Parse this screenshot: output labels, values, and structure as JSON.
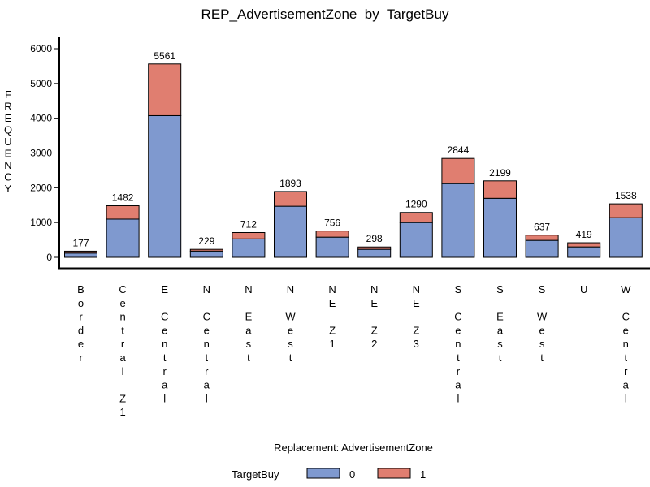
{
  "chart_data": {
    "type": "bar",
    "stacked": true,
    "title": "REP_AdvertisementZone  by  TargetBuy",
    "xlabel": "Replacement: AdvertisementZone",
    "ylabel": "FREQUENCY",
    "ylim": [
      0,
      6300
    ],
    "yticks": [
      0,
      1000,
      2000,
      3000,
      4000,
      5000,
      6000
    ],
    "categories": [
      "Border",
      "Central Z1",
      "E Central",
      "N Central",
      "N East",
      "N West",
      "NE Z1",
      "NE Z2",
      "NE Z3",
      "S Central",
      "S East",
      "S West",
      "U",
      "W Central"
    ],
    "series": [
      {
        "name": "0",
        "color": "#7f99cf",
        "values": [
          122,
          1098,
          4075,
          180,
          530,
          1468,
          580,
          230,
          1000,
          2120,
          1697,
          487,
          300,
          1140
        ]
      },
      {
        "name": "1",
        "color": "#e07e70",
        "values": [
          55,
          384,
          1486,
          49,
          182,
          425,
          176,
          68,
          290,
          724,
          502,
          150,
          119,
          398
        ]
      }
    ],
    "totals": [
      "177",
      "1482",
      "5561",
      "229",
      "712",
      "1893",
      "756",
      "298",
      "1290",
      "2844",
      "2199",
      "637",
      "419",
      "1538"
    ],
    "legend": {
      "title": "TargetBuy",
      "position": "bottom"
    }
  }
}
